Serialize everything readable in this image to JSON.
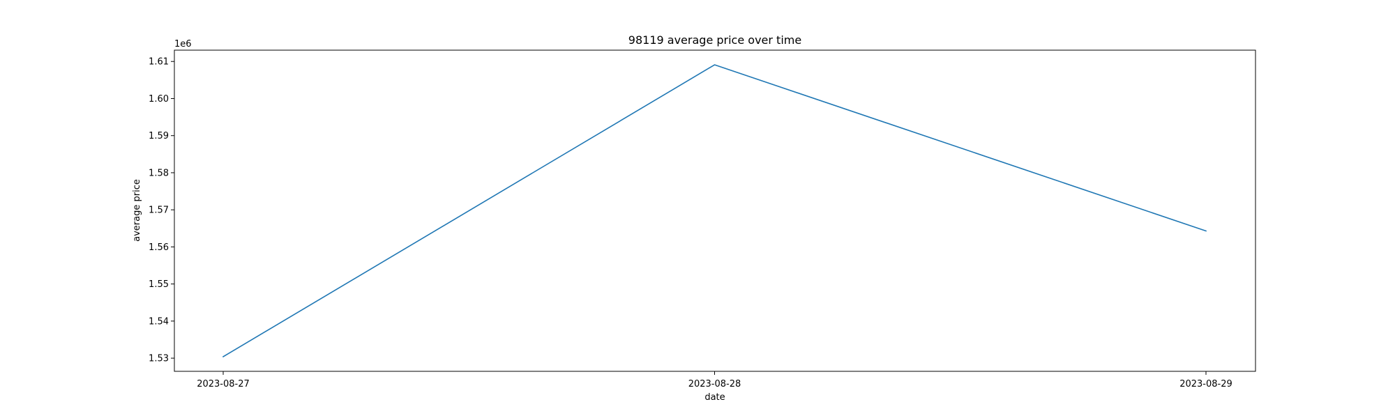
{
  "chart_data": {
    "type": "line",
    "title": "98119 average price over time",
    "xlabel": "date",
    "ylabel": "average price",
    "y_offset_label": "1e6",
    "x": [
      "2023-08-27",
      "2023-08-28",
      "2023-08-29"
    ],
    "x_ticks": [
      "2023-08-27",
      "2023-08-28",
      "2023-08-29"
    ],
    "series": [
      {
        "values": [
          1530400,
          1609100,
          1564300
        ],
        "color": "#1f77b4"
      }
    ],
    "y_ticks": [
      1.53,
      1.54,
      1.55,
      1.56,
      1.57,
      1.58,
      1.59,
      1.6,
      1.61
    ],
    "y_tick_labels": [
      "1.53",
      "1.54",
      "1.55",
      "1.56",
      "1.57",
      "1.58",
      "1.59",
      "1.60",
      "1.61"
    ],
    "y_scale": 1000000,
    "ylim": [
      1526450,
      1613050
    ],
    "grid": false,
    "legend": "none"
  }
}
